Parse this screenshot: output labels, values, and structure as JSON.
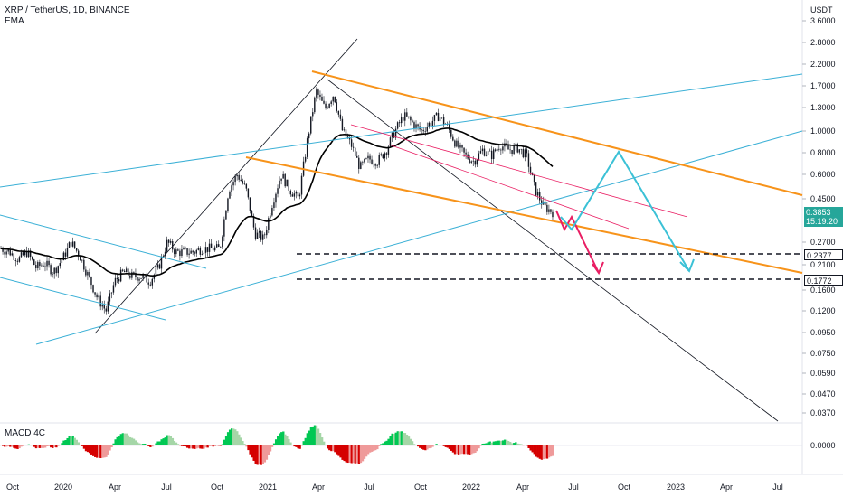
{
  "header": {
    "symbol_line": "XRP / TetherUS, 1D, BINANCE",
    "indicator": "EMA"
  },
  "y_axis": {
    "unit": "USDT",
    "ticks": [
      "3.6000",
      "2.8000",
      "2.2000",
      "1.7000",
      "1.3000",
      "1.0000",
      "0.8000",
      "0.6000",
      "0.4500",
      "0.2700",
      "0.2100",
      "0.1600",
      "0.1200",
      "0.0950",
      "0.0750",
      "0.0590",
      "0.0470",
      "0.0370"
    ]
  },
  "x_axis": {
    "ticks": [
      "Oct",
      "2020",
      "Apr",
      "Jul",
      "Oct",
      "2021",
      "Apr",
      "Jul",
      "Oct",
      "2022",
      "Apr",
      "Jul",
      "Oct",
      "2023",
      "Apr",
      "Jul"
    ]
  },
  "price_tags": {
    "current_price": "0.3853",
    "countdown": "15:19:20",
    "level_a": "0.2377",
    "level_b": "0.1772"
  },
  "macd_pane": {
    "label": "MACD 4C",
    "zero_tick": "0.0000"
  },
  "colors": {
    "candle_up": "#26a69a",
    "candle_down": "#ef5350",
    "ema": "#000000",
    "channel": "#f7931a",
    "trend_blue": "#3bb0d6",
    "pink": "#e91e63",
    "macd_green": "#00c853",
    "macd_red": "#d50000"
  },
  "chart_data": {
    "type": "line",
    "series": [
      {
        "values": [
          0.25,
          0.24,
          0.22,
          0.24,
          0.2,
          0.21,
          0.19,
          0.22,
          0.27,
          0.23,
          0.18,
          0.14,
          0.12,
          0.17,
          0.19,
          0.18,
          0.18,
          0.17,
          0.2,
          0.27,
          0.24,
          0.24,
          0.24,
          0.25,
          0.25,
          0.25,
          0.5,
          0.6,
          0.5,
          0.3,
          0.28,
          0.43,
          0.6,
          0.5,
          0.45,
          0.9,
          1.6,
          1.3,
          1.55,
          1.0,
          0.85,
          0.65,
          0.72,
          0.7,
          0.8,
          1.0,
          1.2,
          1.1,
          1.0,
          1.1,
          1.2,
          1.05,
          0.85,
          0.75,
          0.7,
          0.8,
          0.75,
          0.85,
          0.8,
          0.82,
          0.75,
          0.5,
          0.41,
          0.3853
        ]
      }
    ]
  }
}
